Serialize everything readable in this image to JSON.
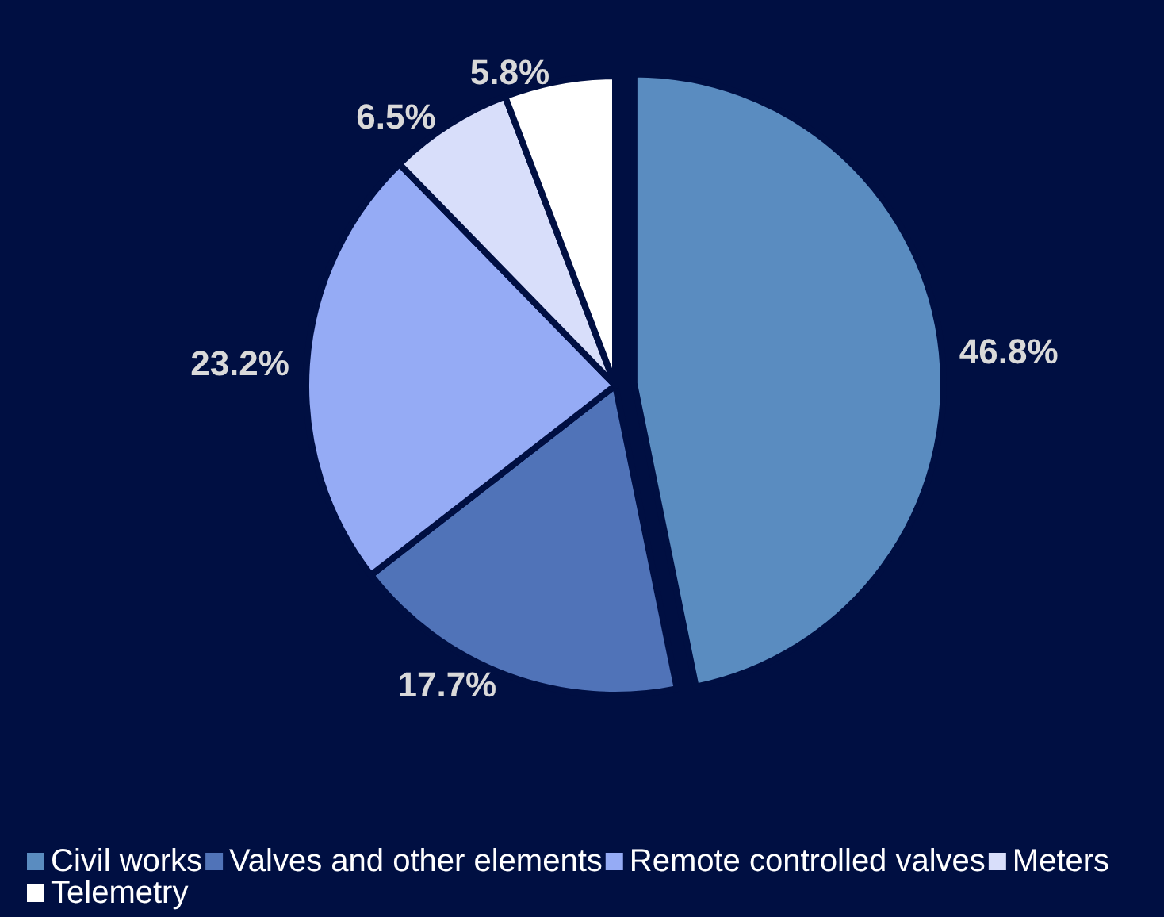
{
  "chart_data": {
    "type": "pie",
    "categories": [
      "Civil works",
      "Valves and other elements",
      "Remote controlled valves",
      "Meters",
      "Telemetry"
    ],
    "values": [
      46.8,
      17.7,
      23.2,
      6.5,
      5.8
    ],
    "colors": [
      "#5a8cc0",
      "#5073b8",
      "#95abf5",
      "#d8defa",
      "#ffffff"
    ],
    "value_labels": [
      "46.8%",
      "17.7%",
      "23.2%",
      "6.5%",
      "5.8%"
    ],
    "legend": "bottom"
  }
}
